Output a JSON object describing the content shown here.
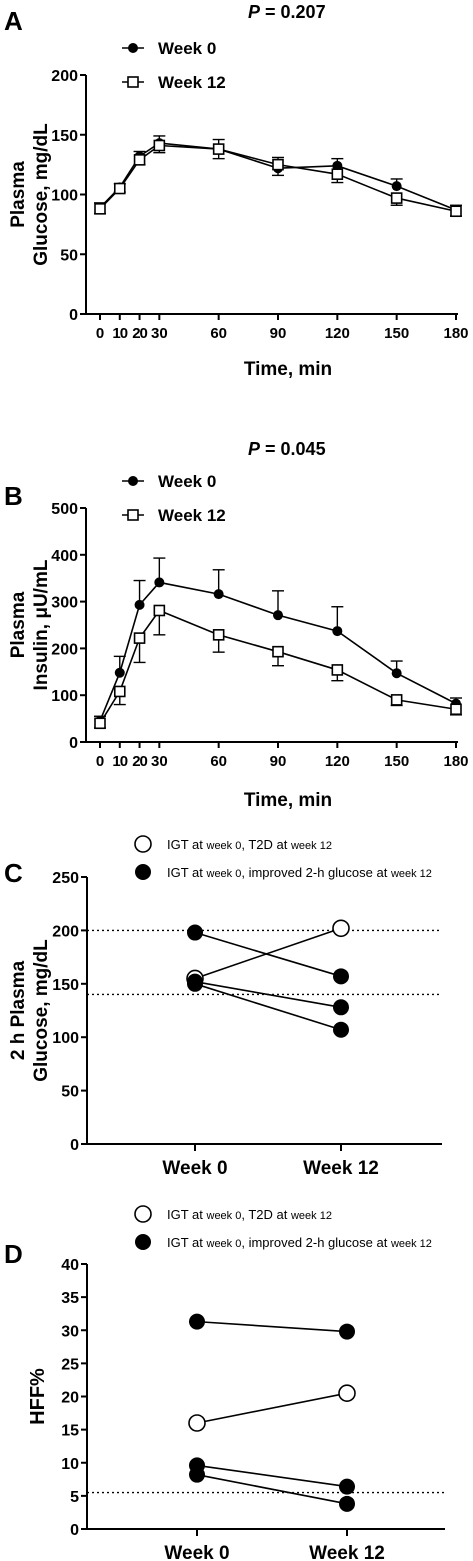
{
  "panels": {
    "A": {
      "letter": "A",
      "p_prefix": "P",
      "p_suffix": " = 0.207"
    },
    "B": {
      "letter": "B",
      "p_prefix": "P",
      "p_suffix": " = 0.045"
    },
    "C": {
      "letter": "C"
    },
    "D": {
      "letter": "D"
    }
  },
  "chart_data": [
    {
      "id": "A",
      "type": "line",
      "ylabel_line1": "Plasma",
      "ylabel_line2": "Glucose, mg/dL",
      "xlabel": "Time, min",
      "x": [
        0,
        10,
        20,
        30,
        60,
        90,
        120,
        150,
        180
      ],
      "x_tick_labels": [
        "0",
        "10",
        "20",
        "30",
        "60",
        "90",
        "120",
        "150",
        "180"
      ],
      "y_ticks": [
        0,
        50,
        100,
        150,
        200
      ],
      "ylim": [
        0,
        200
      ],
      "xlim": [
        0,
        180
      ],
      "series": [
        {
          "name": "Week 0",
          "marker": "filled-circle",
          "values": [
            89,
            106,
            132,
            143,
            138,
            122,
            124,
            107,
            87
          ],
          "err": [
            4,
            3,
            4,
            6,
            8,
            6,
            6,
            6,
            4
          ]
        },
        {
          "name": "Week 12",
          "marker": "open-square",
          "values": [
            88,
            105,
            129,
            141,
            138,
            125,
            117,
            97,
            86
          ],
          "err": [
            4,
            3,
            4,
            6,
            8,
            6,
            7,
            6,
            4
          ]
        }
      ],
      "legend_position": "top-left"
    },
    {
      "id": "B",
      "type": "line",
      "ylabel_line1": "Plasma",
      "ylabel_line2": "Insulin, μU/mL",
      "xlabel": "Time, min",
      "x": [
        0,
        10,
        20,
        30,
        60,
        90,
        120,
        150,
        180
      ],
      "x_tick_labels": [
        "0",
        "10",
        "20",
        "30",
        "60",
        "90",
        "120",
        "150",
        "180"
      ],
      "y_ticks": [
        0,
        100,
        200,
        300,
        400,
        500
      ],
      "ylim": [
        0,
        500
      ],
      "xlim": [
        0,
        180
      ],
      "series": [
        {
          "name": "Week 0",
          "marker": "filled-circle",
          "values": [
            45,
            148,
            293,
            341,
            316,
            271,
            237,
            147,
            82
          ],
          "err": [
            10,
            35,
            52,
            52,
            52,
            52,
            52,
            26,
            12
          ]
        },
        {
          "name": "Week 12",
          "marker": "open-square",
          "values": [
            40,
            108,
            222,
            281,
            229,
            193,
            154,
            90,
            70
          ],
          "err": [
            10,
            28,
            52,
            52,
            37,
            30,
            23,
            12,
            12
          ]
        }
      ],
      "legend_position": "top-left"
    },
    {
      "id": "C",
      "type": "scatter",
      "ylabel_line1": "2 h Plasma",
      "ylabel_line2": "Glucose, mg/dL",
      "categories": [
        "Week 0",
        "Week 12"
      ],
      "y_ticks": [
        0,
        50,
        100,
        150,
        200,
        250
      ],
      "ylim": [
        0,
        250
      ],
      "reference_lines": [
        200,
        140
      ],
      "legend": {
        "open": {
          "pre": "IGT at ",
          "small": "week 0",
          "post": ", T2D at ",
          "small2": "week 12"
        },
        "filled": {
          "pre": "IGT at ",
          "small": "week 0",
          "post": ", improved 2-h glucose at ",
          "small2": "week 12"
        }
      },
      "pairs": [
        {
          "group": "open",
          "values": [
            155,
            202
          ]
        },
        {
          "group": "filled",
          "values": [
            198,
            157
          ]
        },
        {
          "group": "filled",
          "values": [
            152,
            128
          ]
        },
        {
          "group": "filled",
          "values": [
            150,
            107
          ]
        }
      ]
    },
    {
      "id": "D",
      "type": "scatter",
      "ylabel": "HFF%",
      "categories": [
        "Week 0",
        "Week 12"
      ],
      "y_ticks": [
        0,
        5,
        10,
        15,
        20,
        25,
        30,
        35,
        40
      ],
      "ylim": [
        0,
        40
      ],
      "reference_lines": [
        5.5
      ],
      "legend": {
        "open": {
          "pre": "IGT at ",
          "small": "week 0",
          "post": ", T2D at ",
          "small2": "week 12"
        },
        "filled": {
          "pre": "IGT at ",
          "small": "week 0",
          "post": ", improved 2-h glucose at ",
          "small2": "week 12"
        }
      },
      "pairs": [
        {
          "group": "open",
          "values": [
            16,
            20.5
          ]
        },
        {
          "group": "filled",
          "values": [
            31.3,
            29.8
          ]
        },
        {
          "group": "filled",
          "values": [
            9.6,
            6.4
          ]
        },
        {
          "group": "filled",
          "values": [
            8.2,
            3.8
          ]
        }
      ]
    }
  ]
}
